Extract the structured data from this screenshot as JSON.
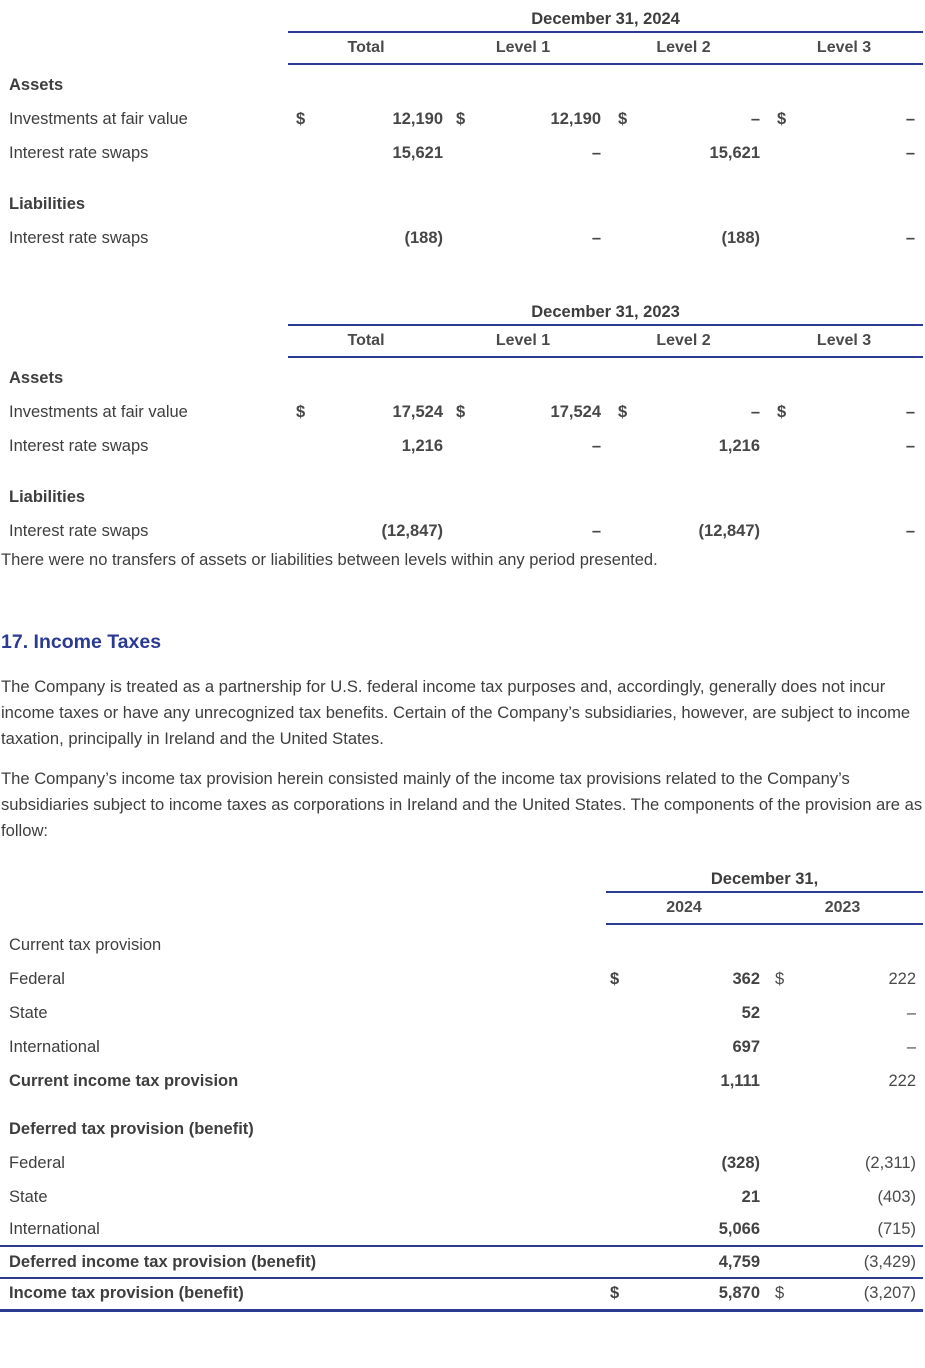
{
  "colors": {
    "rule_blue": "#2b3a92",
    "heading_blue": "#2b3a92",
    "body_text": "#3e3e3e",
    "number_text": "#474747"
  },
  "fair_value_tables": [
    {
      "period": "December 31, 2024",
      "columns": [
        "Total",
        "Level 1",
        "Level 2",
        "Level 3"
      ],
      "sections": [
        {
          "header": "Assets",
          "rows": [
            {
              "label": "Investments at fair value",
              "dollars": true,
              "values": [
                "12,190",
                "12,190",
                "–",
                "–"
              ]
            },
            {
              "label": "Interest rate swaps",
              "dollars": false,
              "values": [
                "15,621",
                "–",
                "15,621",
                "–"
              ]
            }
          ]
        },
        {
          "header": "Liabilities",
          "rows": [
            {
              "label": "Interest rate swaps",
              "dollars": false,
              "values": [
                "(188)",
                "–",
                "(188)",
                "–"
              ]
            }
          ]
        }
      ]
    },
    {
      "period": "December 31, 2023",
      "columns": [
        "Total",
        "Level 1",
        "Level 2",
        "Level 3"
      ],
      "sections": [
        {
          "header": "Assets",
          "rows": [
            {
              "label": "Investments at fair value",
              "dollars": true,
              "values": [
                "17,524",
                "17,524",
                "–",
                "–"
              ]
            },
            {
              "label": "Interest rate swaps",
              "dollars": false,
              "values": [
                "1,216",
                "–",
                "1,216",
                "–"
              ]
            }
          ]
        },
        {
          "header": "Liabilities",
          "rows": [
            {
              "label": "Interest rate swaps",
              "dollars": false,
              "values": [
                "(12,847)",
                "–",
                "(12,847)",
                "–"
              ]
            }
          ]
        }
      ]
    }
  ],
  "transfers_note": "There were no transfers of assets or liabilities between levels within any period presented.",
  "income_taxes": {
    "heading": "17. Income Taxes",
    "paragraphs": [
      "The Company is treated as a partnership for U.S. federal income tax purposes and, accordingly, generally does not incur income taxes or have any unrecognized tax benefits. Certain of the Company’s subsidiaries, however, are subject to income taxation, principally in Ireland and the United States.",
      "The Company’s income tax provision herein consisted mainly of the income tax provisions related to the Company’s subsidiaries subject to income taxes as corporations in Ireland and the United States. The components of the provision are as follow:"
    ],
    "table": {
      "period_header": "December 31,",
      "years": [
        "2024",
        "2023"
      ],
      "rows": [
        {
          "label": "Current tax provision",
          "style": "section-plain"
        },
        {
          "label": "Federal",
          "style": "item",
          "dollars": true,
          "values": [
            "362",
            "222"
          ]
        },
        {
          "label": "State",
          "style": "item",
          "dollars": false,
          "values": [
            "52",
            "–"
          ]
        },
        {
          "label": "International",
          "style": "item",
          "dollars": false,
          "values": [
            "697",
            "–"
          ]
        },
        {
          "label": "Current income tax provision",
          "style": "subtotal",
          "dollars": false,
          "values": [
            "1,111",
            "222"
          ]
        },
        {
          "style": "spacer"
        },
        {
          "label": "Deferred tax provision (benefit)",
          "style": "section-bold"
        },
        {
          "label": "Federal",
          "style": "item",
          "dollars": false,
          "values": [
            "(328)",
            "(2,311)"
          ]
        },
        {
          "label": "State",
          "style": "item",
          "dollars": false,
          "values": [
            "21",
            "(403)"
          ]
        },
        {
          "label": "International",
          "style": "item",
          "rule": "thin",
          "values": [
            "5,066",
            "(715)"
          ]
        },
        {
          "label": "Deferred income tax provision (benefit)",
          "style": "subtotal",
          "rule": "thin",
          "values": [
            "4,759",
            "(3,429)"
          ]
        },
        {
          "label": "Income tax provision (benefit)",
          "style": "total",
          "dollars": true,
          "rule": "thick",
          "values": [
            "5,870",
            "(3,207)"
          ]
        }
      ]
    }
  }
}
